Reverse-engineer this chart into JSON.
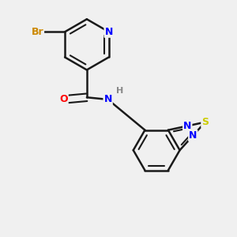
{
  "background_color": "#f0f0f0",
  "bond_color": "#1a1a1a",
  "atom_colors": {
    "N": "#0000ff",
    "O": "#ff0000",
    "S": "#cccc00",
    "Br": "#cc8800",
    "C": "#1a1a1a",
    "H": "#888888"
  },
  "figsize": [
    3.0,
    3.0
  ],
  "dpi": 100
}
